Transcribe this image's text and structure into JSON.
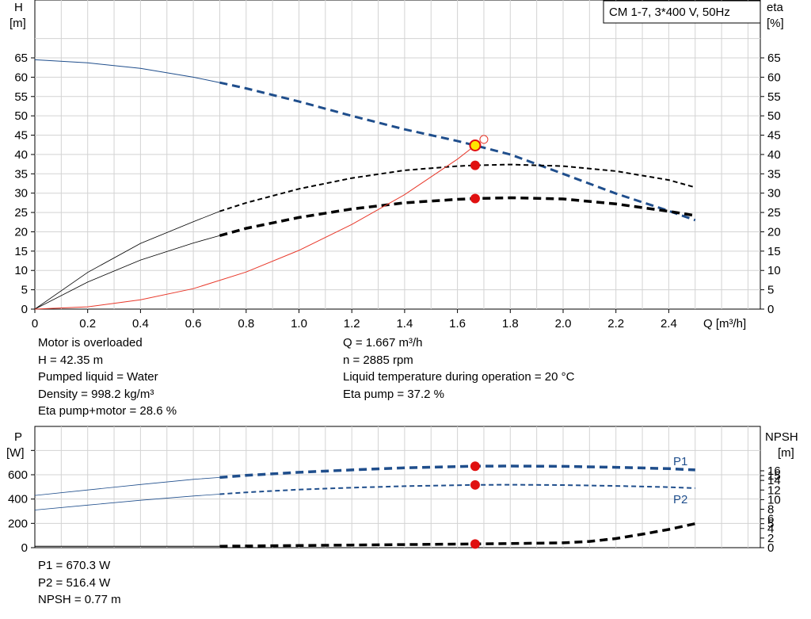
{
  "legend_box": "CM 1-7, 3*400 V, 50Hz",
  "info_top_left": [
    "Motor is overloaded",
    "H = 42.35 m",
    "Pumped liquid = Water",
    "Density = 998.2 kg/m³",
    "Eta pump+motor = 28.6 %"
  ],
  "info_top_right": [
    "Q = 1.667 m³/h",
    "n = 2885 rpm",
    "Liquid temperature during operation = 20 °C",
    "Eta pump = 37.2 %"
  ],
  "info_bottom": [
    "P1 = 670.3 W",
    "P2 = 516.4 W",
    "NPSH = 0.77 m"
  ],
  "colors": {
    "head": "#1f4e8c",
    "efficiency": "#000000",
    "system": "#e8392b",
    "operating_point": "#e01010",
    "grid": "#d3d3d3"
  },
  "chart_data": [
    {
      "type": "line",
      "y_axis_left": {
        "label_line1": "H",
        "label_line2": "[m]",
        "ylim": [
          0,
          65
        ],
        "ticks": [
          "0",
          "5",
          "10",
          "15",
          "20",
          "25",
          "30",
          "35",
          "40",
          "45",
          "50",
          "55",
          "60",
          "65"
        ]
      },
      "y_axis_right": {
        "label_line1": "eta",
        "label_line2": "[%]",
        "ylim": [
          0,
          65
        ],
        "ticks": [
          "0",
          "5",
          "10",
          "15",
          "20",
          "25",
          "30",
          "35",
          "40",
          "45",
          "50",
          "55",
          "60",
          "65"
        ]
      },
      "x_axis": {
        "label": "Q [m³/h]",
        "xlim": [
          0,
          2.7
        ],
        "ticks": [
          "0",
          "0.2",
          "0.4",
          "0.6",
          "0.8",
          "1.0",
          "1.2",
          "1.4",
          "1.6",
          "1.8",
          "2.0",
          "2.2",
          "2.4"
        ]
      },
      "grid": true,
      "series": [
        {
          "role": "head",
          "x": [
            0,
            0.2,
            0.4,
            0.6,
            0.7,
            0.8,
            1.0,
            1.2,
            1.4,
            1.6,
            1.667,
            1.8,
            2.0,
            2.2,
            2.4,
            2.5
          ],
          "y": [
            64.5,
            63.7,
            62.3,
            60.0,
            58.6,
            57.1,
            53.7,
            50.0,
            46.5,
            43.5,
            42.35,
            40.0,
            35.0,
            29.9,
            25.4,
            23.0
          ],
          "solid_until": 0.7
        },
        {
          "role": "eta_pump",
          "x": [
            0,
            0.2,
            0.4,
            0.6,
            0.7,
            0.8,
            1.0,
            1.2,
            1.4,
            1.6,
            1.667,
            1.8,
            2.0,
            2.2,
            2.4,
            2.5
          ],
          "y": [
            0,
            9.5,
            17.0,
            22.6,
            25.3,
            27.5,
            31.1,
            33.9,
            35.9,
            37.0,
            37.2,
            37.4,
            37.0,
            35.7,
            33.4,
            31.5
          ],
          "solid_until": 0.7
        },
        {
          "role": "eta_pump_motor",
          "x": [
            0,
            0.2,
            0.4,
            0.6,
            0.7,
            0.8,
            1.0,
            1.2,
            1.4,
            1.6,
            1.667,
            1.8,
            2.0,
            2.2,
            2.4,
            2.5
          ],
          "y": [
            0,
            7.0,
            12.7,
            17.1,
            19.0,
            20.9,
            23.7,
            25.9,
            27.5,
            28.4,
            28.6,
            28.8,
            28.5,
            27.2,
            25.3,
            24.2
          ],
          "solid_until": 0.7
        },
        {
          "role": "system",
          "x": [
            0,
            0.2,
            0.4,
            0.6,
            0.8,
            1.0,
            1.2,
            1.4,
            1.6,
            1.667
          ],
          "y": [
            0,
            0.6,
            2.4,
            5.3,
            9.6,
            15.2,
            21.9,
            29.6,
            38.8,
            42.35
          ]
        }
      ],
      "operating_points": [
        {
          "x": 1.667,
          "y": 42.35,
          "style": "yellow"
        },
        {
          "x": 1.667,
          "y": 37.2,
          "style": "red"
        },
        {
          "x": 1.667,
          "y": 28.6,
          "style": "red"
        }
      ],
      "open_marker": {
        "x": 1.7,
        "y": 43.9
      }
    },
    {
      "type": "line",
      "y_axis_left": {
        "label_line1": "P",
        "label_line2": "[W]",
        "ylim": [
          0,
          800
        ],
        "ticks": [
          "0",
          "200",
          "400",
          "600"
        ]
      },
      "y_axis_right": {
        "label_line1": "NPSH",
        "label_line2": "[m]",
        "ylim": [
          0,
          20
        ],
        "ticks": [
          "0",
          "2",
          "4",
          "5",
          "6",
          "8",
          "10",
          "12",
          "14",
          "15",
          "16"
        ]
      },
      "x_axis": {
        "xlim": [
          0,
          2.7
        ]
      },
      "grid": true,
      "series": [
        {
          "role": "P1",
          "name": "P1",
          "x": [
            0,
            0.2,
            0.4,
            0.6,
            0.7,
            0.8,
            1.0,
            1.2,
            1.4,
            1.6,
            1.667,
            1.8,
            2.0,
            2.2,
            2.4,
            2.5
          ],
          "y": [
            430,
            475,
            520,
            562,
            578,
            595,
            620,
            640,
            657,
            667,
            670.3,
            672,
            669,
            661,
            650,
            640
          ],
          "solid_until": 0.7
        },
        {
          "role": "P2",
          "name": "P2",
          "x": [
            0,
            0.2,
            0.4,
            0.6,
            0.7,
            0.8,
            1.0,
            1.2,
            1.4,
            1.6,
            1.667,
            1.8,
            2.0,
            2.2,
            2.4,
            2.5
          ],
          "y": [
            310,
            350,
            390,
            425,
            440,
            455,
            478,
            494,
            506,
            514,
            516.4,
            518,
            515,
            508,
            498,
            490
          ],
          "solid_until": 0.7
        },
        {
          "role": "NPSH",
          "x": [
            0,
            0.2,
            0.4,
            0.6,
            0.7,
            0.8,
            1.0,
            1.2,
            1.4,
            1.6,
            1.667,
            1.8,
            2.0,
            2.1,
            2.2,
            2.3,
            2.4,
            2.5
          ],
          "y": [
            0.3,
            0.3,
            0.3,
            0.3,
            0.3,
            0.35,
            0.45,
            0.55,
            0.65,
            0.74,
            0.77,
            0.85,
            1.0,
            1.3,
            1.9,
            2.8,
            3.8,
            5.0
          ],
          "solid_until": 0.7
        }
      ],
      "operating_points": [
        {
          "x": 1.667,
          "y": 670.3,
          "style": "red"
        },
        {
          "x": 1.667,
          "y": 516.4,
          "style": "red"
        },
        {
          "x": 1.667,
          "y": 30,
          "style": "red"
        }
      ]
    }
  ]
}
